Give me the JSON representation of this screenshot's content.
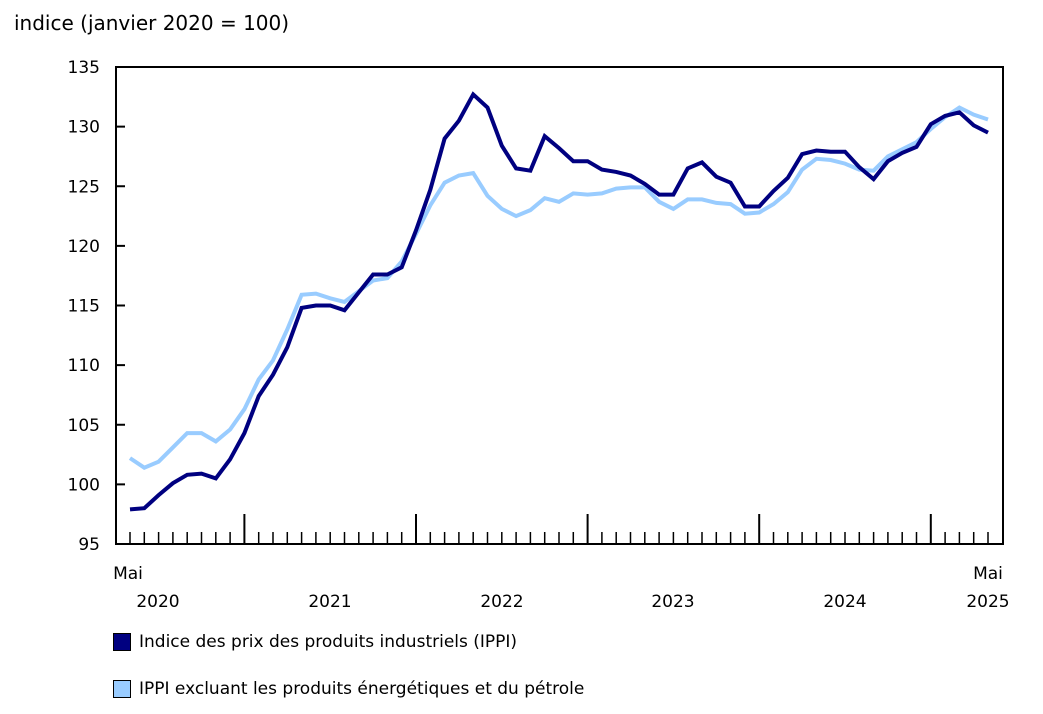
{
  "chart_data": {
    "type": "line",
    "ylabel": "indice (janvier 2020 = 100)",
    "ylim": [
      95,
      135
    ],
    "yticks": [
      95,
      100,
      105,
      110,
      115,
      120,
      125,
      130,
      135
    ],
    "x_start": "2020-05",
    "x_end": "2025-05",
    "x_labels": {
      "first_month": "Mai",
      "last_month": "Mai",
      "years": [
        "2020",
        "2021",
        "2022",
        "2023",
        "2024",
        "2025"
      ]
    },
    "grid": false,
    "legend": "bottom",
    "series": [
      {
        "name": "Indice des prix des produits industriels (IPPI)",
        "color": "#000080",
        "values": [
          97.9,
          98.0,
          99.1,
          100.1,
          100.8,
          100.9,
          100.5,
          102.1,
          104.3,
          107.4,
          109.2,
          111.5,
          114.8,
          115.0,
          115.0,
          114.6,
          116.1,
          117.6,
          117.6,
          118.2,
          121.3,
          124.7,
          129.0,
          130.5,
          132.7,
          131.6,
          128.4,
          126.5,
          126.3,
          129.2,
          128.2,
          127.1,
          127.1,
          126.4,
          126.2,
          125.9,
          125.2,
          124.3,
          124.3,
          126.5,
          127.0,
          125.8,
          125.3,
          123.3,
          123.3,
          124.6,
          125.7,
          127.7,
          128.0,
          127.9,
          127.9,
          126.6,
          125.6,
          127.1,
          127.8,
          128.3,
          130.2,
          130.9,
          131.2,
          130.1,
          129.5
        ]
      },
      {
        "name": "IPPI excluant les produits énergétiques et du pétrole",
        "color": "#99ccff",
        "values": [
          102.2,
          101.4,
          101.9,
          103.1,
          104.3,
          104.3,
          103.6,
          104.6,
          106.3,
          108.8,
          110.4,
          113.0,
          115.9,
          116.0,
          115.6,
          115.3,
          116.2,
          117.1,
          117.3,
          118.7,
          121.0,
          123.4,
          125.3,
          125.9,
          126.1,
          124.2,
          123.1,
          122.5,
          123.0,
          124.0,
          123.7,
          124.4,
          124.3,
          124.4,
          124.8,
          124.9,
          124.9,
          123.7,
          123.1,
          123.9,
          123.9,
          123.6,
          123.5,
          122.7,
          122.8,
          123.5,
          124.5,
          126.4,
          127.3,
          127.2,
          126.9,
          126.4,
          126.3,
          127.5,
          128.1,
          128.7,
          129.8,
          130.8,
          131.6,
          131.0,
          130.6
        ]
      }
    ]
  }
}
